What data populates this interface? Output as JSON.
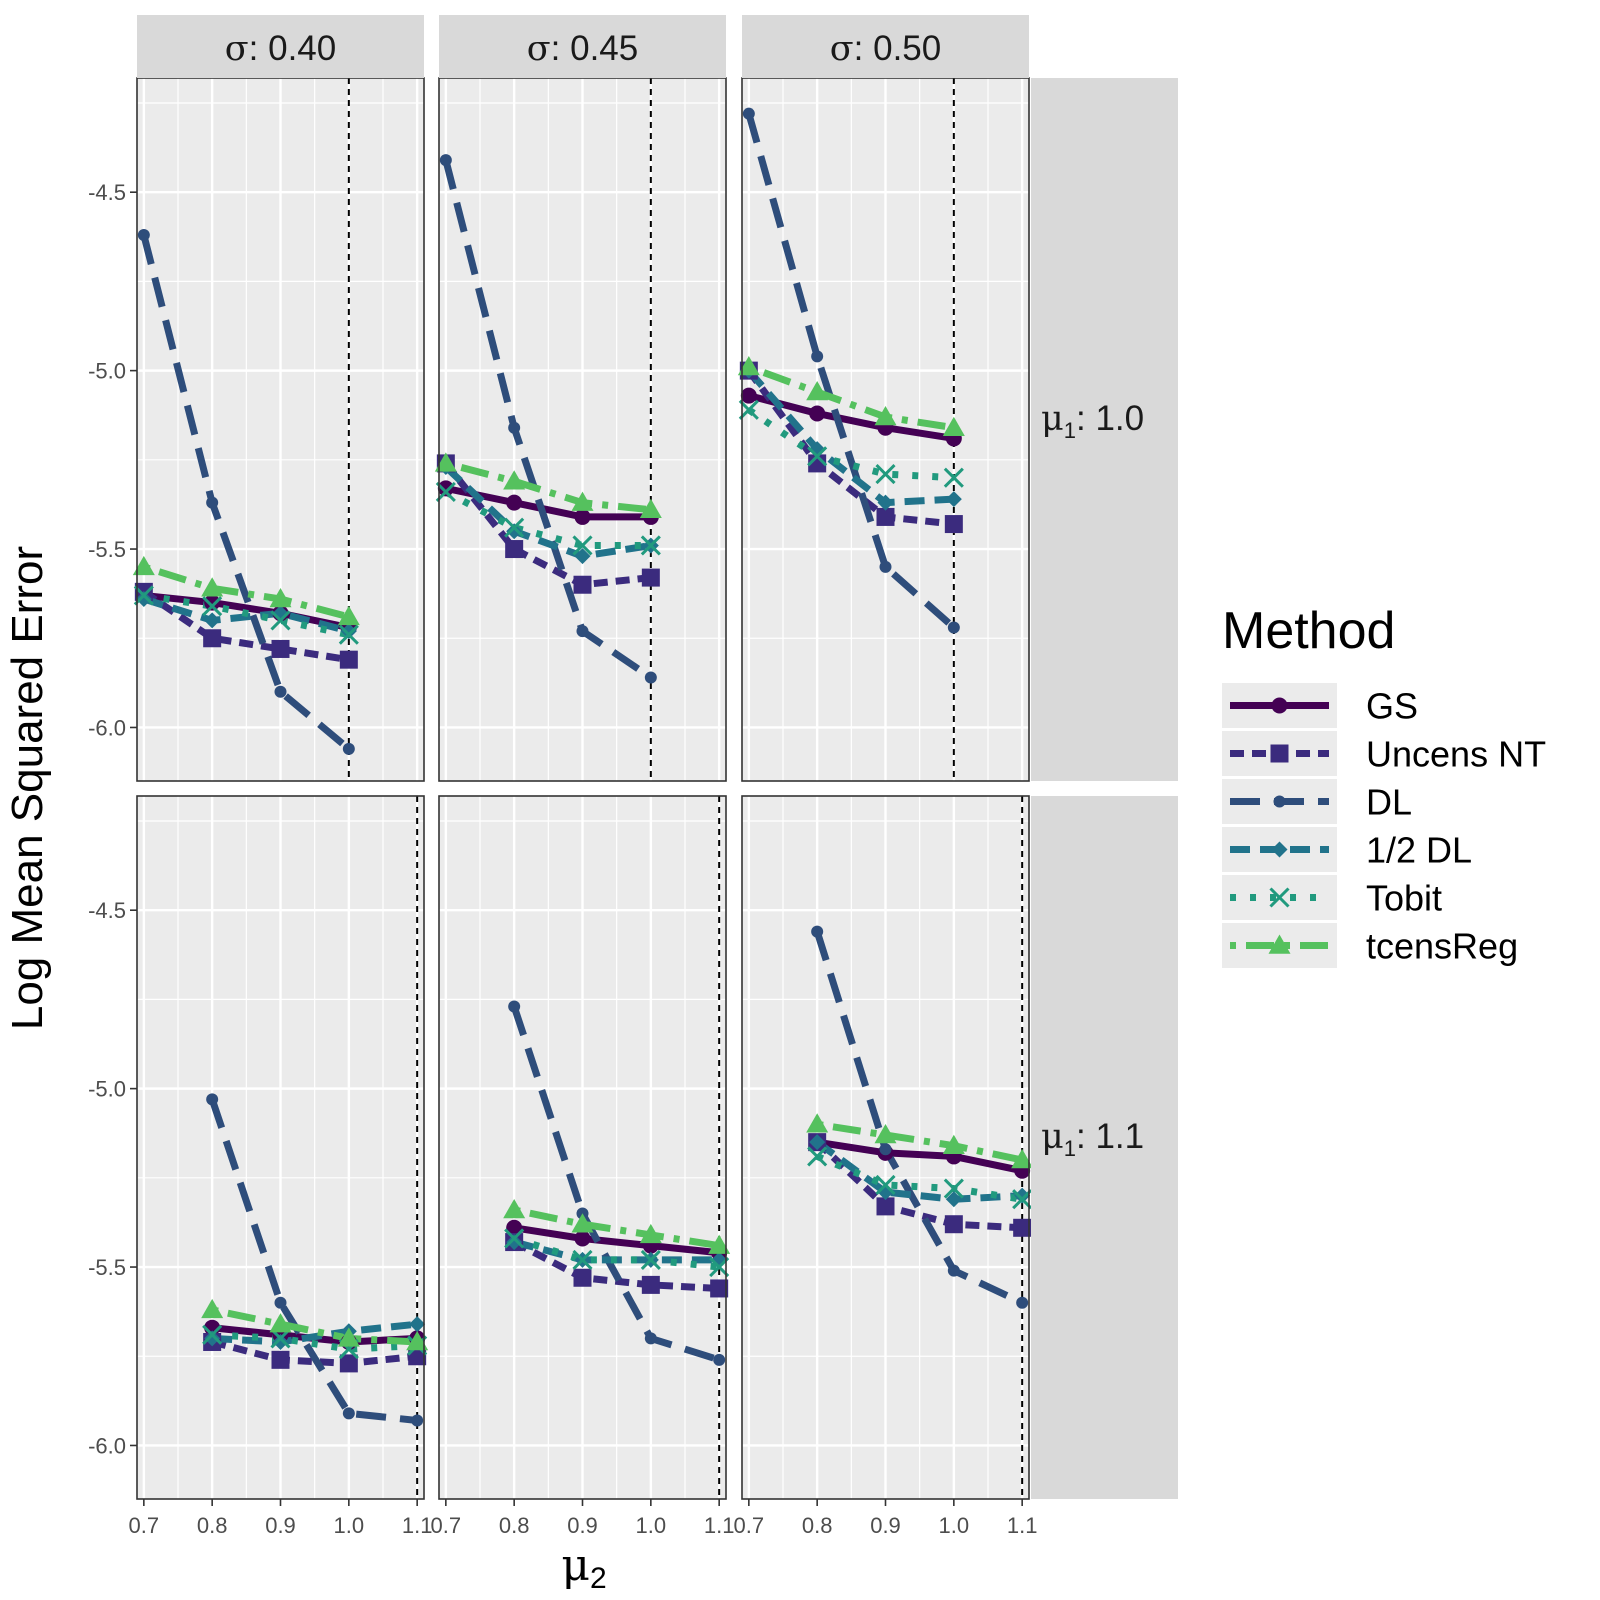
{
  "chart_data": {
    "type": "line",
    "facet_cols_var": "σ",
    "facet_rows_var": "μ",
    "facet_rows_subscript": "1",
    "col_labels": [
      "0.40",
      "0.45",
      "0.50"
    ],
    "row_labels": [
      "1.0",
      "1.1"
    ],
    "x": [
      0.7,
      0.8,
      0.9,
      1.0,
      1.1
    ],
    "xticks": [
      "0.7",
      "0.8",
      "0.9",
      "1.0",
      "1.1"
    ],
    "xlim": [
      0.69,
      1.11
    ],
    "ylim": [
      -6.15,
      -4.18
    ],
    "yticks": [
      -4.5,
      -5.0,
      -5.5,
      -6.0
    ],
    "ytick_labels": [
      "-4.5",
      "-5.0",
      "-5.5",
      "-6.0"
    ],
    "xlabel_symbol": "μ",
    "xlabel_subscript": "2",
    "ylabel": "Log Mean Squared Error",
    "legend_title": "Method",
    "legend_position": "right",
    "reference_lines": [
      [
        1.0,
        1.0,
        1.0
      ],
      [
        1.1,
        1.1,
        1.1
      ]
    ],
    "series": [
      {
        "name": "GS",
        "color": "#440154",
        "dash": "",
        "width": 7,
        "shape": "circle",
        "size": 8
      },
      {
        "name": "Uncens NT",
        "color": "#3b2b7e",
        "dash": "14 8",
        "width": 7,
        "shape": "square",
        "size": 9
      },
      {
        "name": "DL",
        "color": "#2e4d7b",
        "dash": "30 14",
        "width": 7,
        "shape": "circle",
        "size": 6
      },
      {
        "name": "1/2 DL",
        "color": "#21738b",
        "dash": "20 10",
        "width": 7,
        "shape": "diamond",
        "size": 8
      },
      {
        "name": "Tobit",
        "color": "#219a7e",
        "dash": "6 14",
        "width": 7,
        "shape": "cross",
        "size": 9
      },
      {
        "name": "tcensReg",
        "color": "#55c15e",
        "dash": "6 10 28 10",
        "width": 7,
        "shape": "triangle",
        "size": 11
      }
    ],
    "panels": [
      [
        {
          "GS": [
            -5.63,
            -5.65,
            -5.68,
            -5.72,
            null
          ],
          "Uncens NT": [
            -5.62,
            -5.75,
            -5.78,
            -5.81,
            null
          ],
          "DL": [
            -4.62,
            -5.37,
            -5.9,
            -6.06,
            null
          ],
          "1/2 DL": [
            -5.64,
            -5.7,
            -5.68,
            -5.73,
            null
          ],
          "Tobit": [
            -5.63,
            -5.66,
            -5.7,
            -5.74,
            null
          ],
          "tcensReg": [
            -5.55,
            -5.61,
            -5.64,
            -5.69,
            null
          ]
        },
        {
          "GS": [
            -5.33,
            -5.37,
            -5.41,
            -5.41,
            null
          ],
          "Uncens NT": [
            -5.26,
            -5.5,
            -5.6,
            -5.58,
            null
          ],
          "DL": [
            -4.41,
            -5.16,
            -5.73,
            -5.86,
            null
          ],
          "1/2 DL": [
            -5.27,
            -5.45,
            -5.52,
            -5.49,
            null
          ],
          "Tobit": [
            -5.34,
            -5.44,
            -5.49,
            -5.49,
            null
          ],
          "tcensReg": [
            -5.26,
            -5.31,
            -5.37,
            -5.39,
            null
          ]
        },
        {
          "GS": [
            -5.07,
            -5.12,
            -5.16,
            -5.19,
            null
          ],
          "Uncens NT": [
            -5.0,
            -5.26,
            -5.41,
            -5.43,
            null
          ],
          "DL": [
            -4.28,
            -4.96,
            -5.55,
            -5.72,
            null
          ],
          "1/2 DL": [
            -5.0,
            -5.22,
            -5.37,
            -5.36,
            null
          ],
          "Tobit": [
            -5.11,
            -5.24,
            -5.29,
            -5.3,
            null
          ],
          "tcensReg": [
            -4.99,
            -5.06,
            -5.13,
            -5.16,
            null
          ]
        }
      ],
      [
        {
          "GS": [
            null,
            -5.67,
            -5.69,
            -5.71,
            -5.7
          ],
          "Uncens NT": [
            null,
            -5.71,
            -5.76,
            -5.77,
            -5.75
          ],
          "DL": [
            null,
            -5.03,
            -5.6,
            -5.91,
            -5.93
          ],
          "1/2 DL": [
            null,
            -5.7,
            -5.71,
            -5.68,
            -5.66
          ],
          "Tobit": [
            null,
            -5.69,
            -5.7,
            -5.73,
            -5.72
          ],
          "tcensReg": [
            null,
            -5.62,
            -5.66,
            -5.7,
            -5.71
          ]
        },
        {
          "GS": [
            null,
            -5.39,
            -5.42,
            -5.44,
            -5.46
          ],
          "Uncens NT": [
            null,
            -5.43,
            -5.53,
            -5.55,
            -5.56
          ],
          "DL": [
            null,
            -4.77,
            -5.35,
            -5.7,
            -5.76
          ],
          "1/2 DL": [
            null,
            -5.43,
            -5.48,
            -5.48,
            -5.48
          ],
          "Tobit": [
            null,
            -5.42,
            -5.48,
            -5.48,
            -5.5
          ],
          "tcensReg": [
            null,
            -5.34,
            -5.38,
            -5.41,
            -5.44
          ]
        },
        {
          "GS": [
            null,
            -5.15,
            -5.18,
            -5.19,
            -5.23
          ],
          "Uncens NT": [
            null,
            -5.15,
            -5.33,
            -5.38,
            -5.39
          ],
          "DL": [
            null,
            -4.56,
            -5.17,
            -5.51,
            -5.6
          ],
          "1/2 DL": [
            null,
            -5.15,
            -5.29,
            -5.31,
            -5.3
          ],
          "Tobit": [
            null,
            -5.19,
            -5.27,
            -5.28,
            -5.31
          ],
          "tcensReg": [
            null,
            -5.1,
            -5.13,
            -5.16,
            -5.2
          ]
        }
      ]
    ]
  }
}
